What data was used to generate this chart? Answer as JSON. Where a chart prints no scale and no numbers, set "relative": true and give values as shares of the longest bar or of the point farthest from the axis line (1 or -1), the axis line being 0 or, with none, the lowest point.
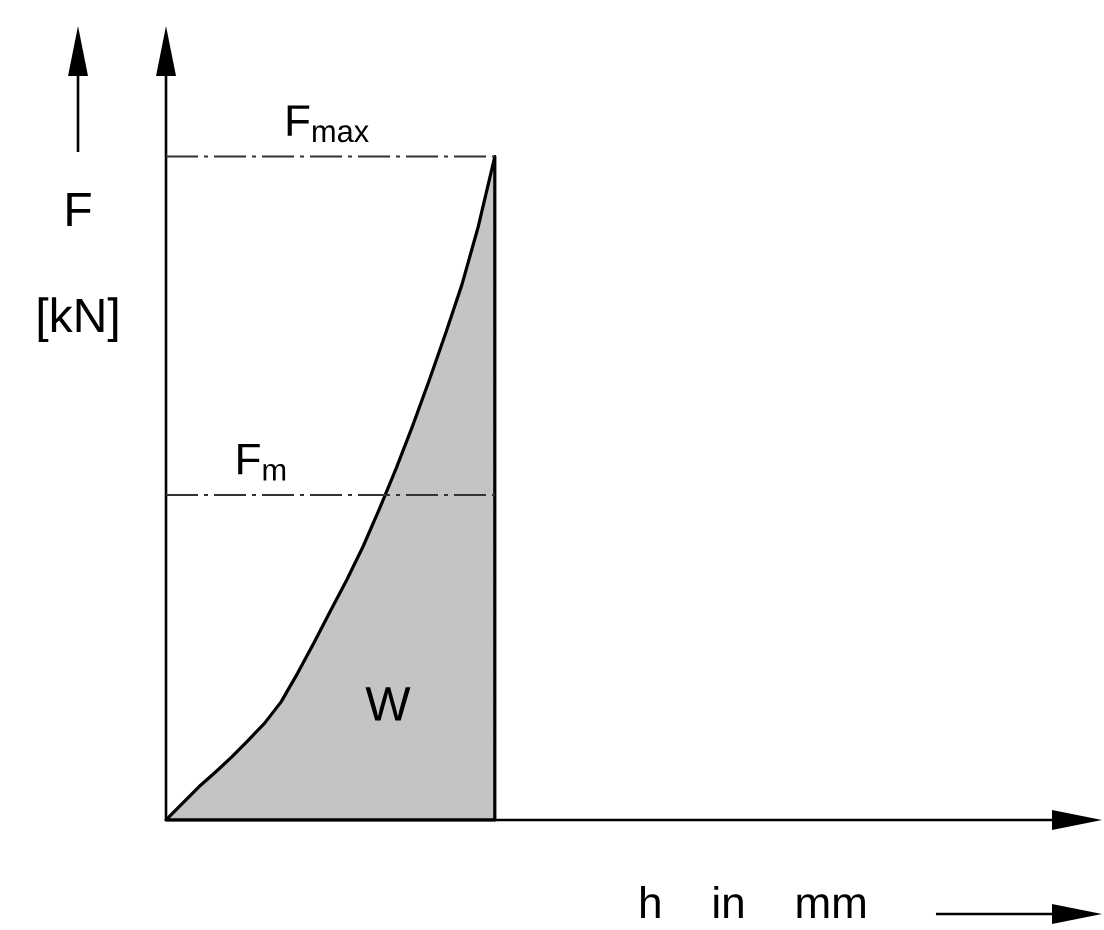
{
  "chart_data": {
    "type": "area",
    "relative": true,
    "ylabel": "F [kN]",
    "xlabel": "h in mm",
    "categories": [
      null,
      null,
      null,
      null,
      null,
      null,
      null,
      null,
      null,
      null,
      null,
      null,
      null,
      null,
      null,
      null,
      null,
      null,
      null,
      null,
      null
    ],
    "values": [
      0,
      0.025,
      0.05,
      0.072,
      0.095,
      0.12,
      0.146,
      0.178,
      0.221,
      0.267,
      0.315,
      0.362,
      0.413,
      0.47,
      0.53,
      0.594,
      0.662,
      0.733,
      0.807,
      0.895,
      1
    ],
    "color": "#c4c4c4",
    "ref_lines": [
      {
        "axis": "y",
        "value": 1,
        "label": "F$_{max}$",
        "line_style": "dashed",
        "color": "#333333"
      },
      {
        "axis": "y",
        "value": 0.49,
        "label": "F$_{m}$",
        "line_style": "dashed",
        "color": "#333333"
      }
    ],
    "annotations": [
      "W"
    ]
  }
}
